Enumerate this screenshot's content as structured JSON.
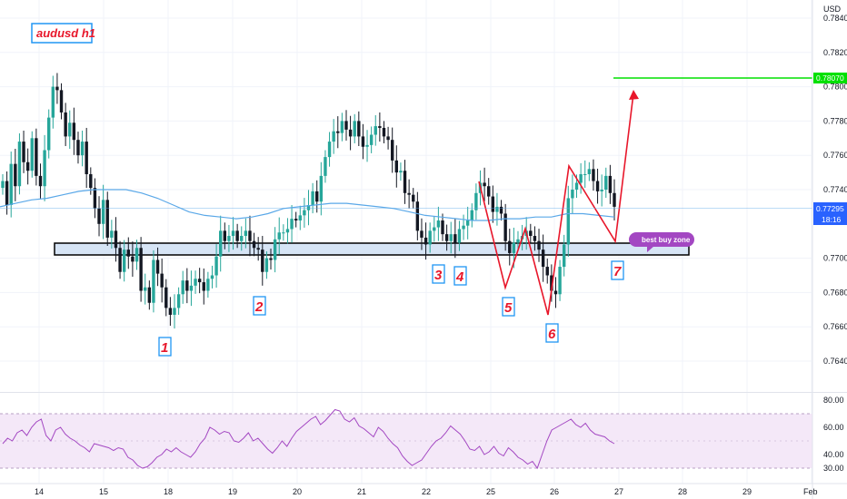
{
  "chart_data": {
    "type": "candlestick",
    "title": "audusd h1",
    "currency": "USD",
    "x_ticks": [
      "14",
      "15",
      "18",
      "19",
      "20",
      "21",
      "22",
      "25",
      "26",
      "27",
      "28",
      "29",
      "Feb"
    ],
    "y_ticks": [
      "0.78400",
      "0.78200",
      "0.78000",
      "0.77800",
      "0.77600",
      "0.77400",
      "0.77000",
      "0.76800",
      "0.76600",
      "0.76400"
    ],
    "ylim": [
      0.7625,
      0.7858
    ],
    "price_series": [
      0.7745,
      0.7731,
      0.7755,
      0.7742,
      0.7768,
      0.7756,
      0.7751,
      0.777,
      0.7748,
      0.7742,
      0.7763,
      0.7782,
      0.78,
      0.7798,
      0.7785,
      0.7771,
      0.7779,
      0.7769,
      0.776,
      0.7768,
      0.7749,
      0.7741,
      0.7729,
      0.772,
      0.7734,
      0.7712,
      0.7716,
      0.7706,
      0.7692,
      0.7705,
      0.7701,
      0.7698,
      0.7706,
      0.7681,
      0.7683,
      0.7674,
      0.7699,
      0.7691,
      0.7683,
      0.7671,
      0.7667,
      0.7671,
      0.7679,
      0.7687,
      0.7681,
      0.7684,
      0.7688,
      0.7686,
      0.7681,
      0.7688,
      0.769,
      0.7701,
      0.7716,
      0.771,
      0.7713,
      0.7716,
      0.771,
      0.7713,
      0.7716,
      0.771,
      0.7706,
      0.7705,
      0.7692,
      0.77,
      0.7699,
      0.7711,
      0.7715,
      0.7715,
      0.7717,
      0.7723,
      0.7722,
      0.7725,
      0.7728,
      0.7731,
      0.7739,
      0.7733,
      0.7748,
      0.7759,
      0.7768,
      0.7774,
      0.7773,
      0.778,
      0.7775,
      0.7771,
      0.778,
      0.7771,
      0.7765,
      0.7766,
      0.7772,
      0.7777,
      0.7776,
      0.7771,
      0.7769,
      0.7757,
      0.775,
      0.7751,
      0.7738,
      0.7737,
      0.7733,
      0.7716,
      0.7712,
      0.7708,
      0.7716,
      0.7718,
      0.7722,
      0.7714,
      0.771,
      0.7714,
      0.7709,
      0.7717,
      0.7719,
      0.7722,
      0.7728,
      0.7738,
      0.7744,
      0.7742,
      0.7736,
      0.7727,
      0.773,
      0.7726,
      0.771,
      0.7703,
      0.7709,
      0.7711,
      0.7713,
      0.7716,
      0.7713,
      0.771,
      0.7705,
      0.7695,
      0.769,
      0.7681,
      0.7679,
      0.7695,
      0.7708,
      0.7735,
      0.774,
      0.7744,
      0.7749,
      0.7749,
      0.7752,
      0.7745,
      0.7739,
      0.774,
      0.7748,
      0.7738,
      0.773
    ],
    "ma_series": [
      0.773,
      0.7732,
      0.7734,
      0.7735,
      0.7737,
      0.7739,
      0.774,
      0.774,
      0.774,
      0.7738,
      0.7735,
      0.7731,
      0.7727,
      0.7725,
      0.7724,
      0.7723,
      0.7724,
      0.7726,
      0.7729,
      0.773,
      0.7731,
      0.7732,
      0.7732,
      0.7731,
      0.773,
      0.7729,
      0.7727,
      0.7725,
      0.7724,
      0.7723,
      0.7722,
      0.7722,
      0.7723,
      0.7723,
      0.7724,
      0.7724,
      0.7726,
      0.7726,
      0.7725,
      0.7724
    ],
    "rsi_series": [
      48,
      52,
      50,
      56,
      58,
      54,
      60,
      64,
      66,
      54,
      50,
      58,
      60,
      55,
      52,
      50,
      47,
      45,
      42,
      48,
      47,
      46,
      45,
      43,
      45,
      44,
      38,
      36,
      32,
      30,
      31,
      34,
      38,
      40,
      44,
      42,
      45,
      42,
      40,
      38,
      42,
      48,
      52,
      60,
      58,
      55,
      57,
      56,
      50,
      49,
      52,
      56,
      50,
      52,
      48,
      44,
      41,
      45,
      50,
      46,
      52,
      57,
      60,
      63,
      66,
      68,
      62,
      65,
      69,
      73,
      72,
      66,
      64,
      67,
      61,
      59,
      56,
      53,
      60,
      57,
      52,
      48,
      45,
      39,
      35,
      32,
      34,
      36,
      41,
      46,
      50,
      52,
      56,
      61,
      58,
      55,
      50,
      44,
      43,
      46,
      40,
      42,
      46,
      41,
      39,
      45,
      42,
      38,
      36,
      33,
      35,
      30,
      40,
      50,
      58,
      60,
      62,
      64,
      66,
      62,
      60,
      63,
      58,
      55,
      54,
      53,
      50,
      48
    ],
    "rsi_ticks": [
      "80.00",
      "60.00",
      "40.00",
      "30.00"
    ],
    "rsi_ylim": [
      28,
      82
    ],
    "current_price": "0.77295",
    "current_time": "18:16",
    "target_price": "0.78070",
    "zone_label": "best buy zone",
    "wave_labels": [
      "1",
      "2",
      "3",
      "4",
      "5",
      "6",
      "7"
    ],
    "colors": {
      "up": "#26a69a",
      "down": "#131722",
      "ma": "#5aa8e8",
      "rsi_line": "#a347c2",
      "rsi_band": "#f3e5f7",
      "annotation": "#e8172b",
      "target_line": "#00e000",
      "zone_fill": "#d6e4f5",
      "zone_tag": "#a347c2"
    }
  }
}
